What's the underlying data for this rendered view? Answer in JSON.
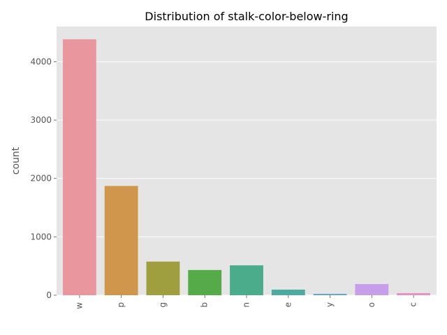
{
  "chart_data": {
    "type": "bar",
    "title": "Distribution of stalk-color-below-ring",
    "xlabel": "",
    "ylabel": "count",
    "categories": [
      "w",
      "p",
      "g",
      "b",
      "n",
      "e",
      "y",
      "o",
      "c"
    ],
    "values": [
      4384,
      1872,
      576,
      432,
      512,
      96,
      24,
      192,
      36
    ],
    "colors": [
      "#ea969f",
      "#d0964c",
      "#9f9f40",
      "#55ab47",
      "#4aac8a",
      "#4bab9f",
      "#68a6d4",
      "#c79eea",
      "#e990c8"
    ],
    "yticks": [
      0,
      1000,
      2000,
      3000,
      4000
    ],
    "ylim": [
      0,
      4603
    ],
    "grid": true,
    "background": "#e5e5e5"
  }
}
